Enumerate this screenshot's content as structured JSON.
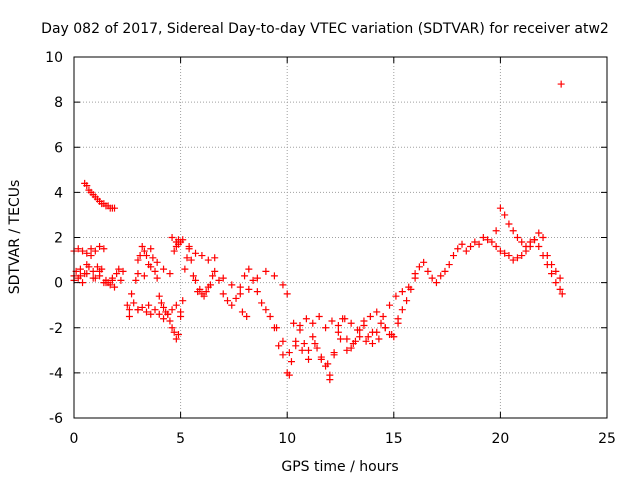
{
  "chart_data": {
    "type": "scatter",
    "title": "Day 082 of 2017, Sidereal Day-to-day VTEC variation (SDTVAR) for receiver atw2",
    "xlabel": "GPS time / hours",
    "ylabel": "SDTVAR / TECUs",
    "xlim": [
      0,
      25
    ],
    "ylim": [
      -6,
      10
    ],
    "x_ticks": [
      0,
      5,
      10,
      15,
      20,
      25
    ],
    "y_ticks": [
      -6,
      -4,
      -2,
      0,
      2,
      4,
      6,
      8,
      10
    ],
    "x_tick_labels": [
      "0",
      "5",
      "10",
      "15",
      "20",
      "25"
    ],
    "y_tick_labels": [
      "-6",
      "-4",
      "-2",
      "0",
      "2",
      "4",
      "6",
      "8",
      "10"
    ],
    "grid": true,
    "marker": "plus",
    "color": "#ff0000",
    "series": [
      {
        "name": "SDTVAR",
        "x": [
          0.0,
          0.1,
          0.2,
          0.3,
          0.4,
          0.5,
          0.6,
          0.7,
          0.8,
          0.9,
          1.0,
          1.1,
          1.2,
          1.3,
          1.4,
          1.5,
          1.6,
          1.7,
          1.8,
          1.9,
          2.0,
          2.1,
          2.2,
          2.3,
          2.5,
          2.7,
          2.9,
          3.0,
          3.1,
          3.2,
          3.3,
          3.4,
          3.5,
          3.6,
          3.7,
          3.8,
          3.9,
          4.0,
          4.1,
          4.2,
          4.3,
          4.4,
          4.5,
          4.6,
          4.7,
          4.8,
          4.9,
          5.0,
          5.1,
          5.2,
          5.3,
          5.4,
          5.5,
          5.6,
          5.7,
          5.8,
          5.9,
          6.0,
          6.1,
          6.2,
          6.3,
          6.4,
          6.5,
          6.6,
          6.8,
          7.0,
          7.2,
          7.4,
          7.6,
          7.8,
          8.0,
          8.2,
          8.4,
          8.6,
          8.8,
          9.0,
          9.2,
          9.4,
          9.6,
          9.8,
          10.0,
          10.2,
          10.4,
          10.6,
          10.8,
          11.0,
          11.2,
          11.4,
          11.6,
          11.8,
          12.0,
          12.2,
          12.4,
          12.6,
          12.8,
          13.0,
          13.2,
          13.4,
          13.6,
          13.8,
          14.0,
          14.2,
          14.4,
          14.6,
          14.8,
          15.0,
          15.2,
          15.4,
          15.6,
          15.8,
          16.0,
          16.2,
          16.4,
          16.6,
          16.8,
          17.0,
          17.2,
          17.4,
          17.6,
          17.8,
          18.0,
          18.2,
          18.4,
          18.6,
          18.8,
          19.0,
          19.2,
          19.4,
          19.6,
          19.8,
          20.0,
          20.2,
          20.4,
          20.6,
          20.8,
          21.0,
          21.2,
          21.4,
          21.6,
          21.8,
          22.0,
          22.2,
          22.4,
          22.6,
          22.8,
          0.0,
          0.2,
          0.4,
          0.6,
          0.8,
          1.0,
          1.2,
          1.4,
          0.0,
          0.3,
          0.6,
          0.9,
          1.2,
          1.5,
          1.8,
          0.5,
          0.6,
          0.7,
          0.8,
          0.9,
          1.0,
          1.1,
          1.2,
          1.3,
          1.4,
          1.5,
          1.6,
          1.7,
          1.8,
          1.9,
          2.6,
          2.8,
          3.0,
          3.2,
          3.4,
          3.6,
          3.8,
          4.0,
          4.2,
          4.4,
          4.6,
          4.8,
          5.0,
          3.0,
          3.3,
          3.6,
          3.9,
          4.2,
          4.5,
          4.8,
          5.1,
          5.4,
          5.7,
          6.0,
          6.3,
          6.6,
          7.0,
          7.4,
          7.8,
          8.2,
          8.6,
          9.0,
          9.4,
          9.8,
          10.0,
          10.3,
          10.6,
          10.9,
          11.2,
          11.5,
          11.8,
          12.1,
          12.4,
          12.7,
          13.0,
          13.3,
          13.6,
          13.9,
          14.2,
          14.5,
          14.8,
          15.1,
          15.4,
          15.7,
          16.0,
          9.5,
          9.8,
          10.1,
          10.4,
          10.7,
          11.0,
          11.3,
          11.6,
          11.9,
          12.2,
          12.5,
          12.8,
          13.1,
          13.4,
          13.7,
          14.0,
          14.3,
          14.6,
          14.9,
          15.2,
          19.8,
          20.0,
          20.2,
          20.4,
          20.6,
          20.8,
          21.0,
          21.2,
          21.4,
          21.6,
          21.8,
          22.0,
          22.2,
          22.4,
          22.6,
          22.8,
          22.9,
          4.7,
          4.8,
          4.9,
          5.0,
          4.6,
          4.9,
          2.6,
          3.0,
          3.5,
          7.9,
          8.1,
          12.0,
          10.1,
          22.85
        ],
        "y": [
          0.3,
          0.5,
          0.2,
          0.6,
          0.0,
          0.4,
          0.8,
          0.7,
          1.2,
          0.5,
          0.2,
          0.7,
          0.3,
          0.6,
          0.0,
          0.1,
          0.0,
          -0.1,
          0.2,
          -0.2,
          0.4,
          0.6,
          0.1,
          0.5,
          -1.0,
          -0.5,
          0.1,
          1.0,
          1.2,
          1.6,
          1.4,
          1.2,
          0.8,
          1.5,
          1.1,
          0.5,
          0.2,
          -0.6,
          -0.9,
          -1.1,
          -1.3,
          -1.4,
          -1.7,
          -2.0,
          -2.2,
          -2.5,
          -2.3,
          -1.5,
          -0.8,
          0.6,
          1.1,
          1.5,
          1.0,
          0.3,
          0.1,
          -0.4,
          -0.3,
          -0.5,
          -0.6,
          -0.4,
          -0.2,
          -0.1,
          0.3,
          0.5,
          0.1,
          -0.5,
          -0.8,
          -1.0,
          -0.7,
          -0.2,
          0.3,
          0.6,
          0.1,
          -0.4,
          -0.9,
          -1.2,
          -1.5,
          -2.0,
          -2.8,
          -3.2,
          -4.0,
          -3.5,
          -2.6,
          -2.1,
          -2.7,
          -3.0,
          -2.4,
          -2.9,
          -3.4,
          -3.7,
          -4.1,
          -3.1,
          -2.2,
          -1.6,
          -2.5,
          -2.9,
          -2.6,
          -2.1,
          -1.9,
          -2.4,
          -2.7,
          -2.2,
          -1.8,
          -2.0,
          -2.3,
          -2.4,
          -1.8,
          -1.2,
          -0.8,
          -0.3,
          0.4,
          0.7,
          0.9,
          0.5,
          0.2,
          0.0,
          0.3,
          0.5,
          0.8,
          1.2,
          1.5,
          1.7,
          1.4,
          1.6,
          1.8,
          1.7,
          2.0,
          1.9,
          1.8,
          1.6,
          1.4,
          1.3,
          1.2,
          1.0,
          1.1,
          1.2,
          1.4,
          1.6,
          1.9,
          2.2,
          2.0,
          1.2,
          0.8,
          0.5,
          0.2,
          1.4,
          1.5,
          1.4,
          1.3,
          1.5,
          1.4,
          1.6,
          1.5,
          0.1,
          0.3,
          0.4,
          0.2,
          0.5,
          0.0,
          0.1,
          4.4,
          4.3,
          4.1,
          4.0,
          3.9,
          3.8,
          3.7,
          3.6,
          3.5,
          3.5,
          3.4,
          3.4,
          3.3,
          3.3,
          3.3,
          -1.2,
          -0.9,
          -1.2,
          -1.1,
          -1.3,
          -1.4,
          -1.2,
          -1.4,
          -1.6,
          -1.4,
          -1.2,
          -1.0,
          -1.3,
          0.4,
          0.3,
          0.7,
          0.9,
          0.6,
          0.4,
          1.8,
          1.9,
          1.6,
          1.3,
          1.2,
          1.0,
          1.1,
          0.2,
          -0.1,
          -0.5,
          -0.3,
          0.2,
          0.5,
          0.3,
          -0.1,
          -0.5,
          -1.8,
          -1.9,
          -1.6,
          -1.8,
          -1.5,
          -2.0,
          -1.7,
          -1.9,
          -1.6,
          -1.8,
          -2.1,
          -1.7,
          -1.5,
          -1.3,
          -1.5,
          -1.0,
          -0.6,
          -0.4,
          -0.2,
          0.2,
          -2.0,
          -2.6,
          -3.1,
          -2.8,
          -3.0,
          -3.4,
          -2.7,
          -3.3,
          -3.6,
          -3.2,
          -2.5,
          -3.0,
          -2.7,
          -2.4,
          -2.6,
          -2.2,
          -2.5,
          -2.0,
          -2.3,
          -1.6,
          2.3,
          3.3,
          3.0,
          2.6,
          2.3,
          2.0,
          1.8,
          1.6,
          1.8,
          1.9,
          1.6,
          1.2,
          0.8,
          0.4,
          0.0,
          -0.3,
          -0.5,
          1.4,
          1.6,
          1.9,
          1.8,
          2.0,
          1.7,
          -1.5,
          -1.2,
          -1.0,
          -1.3,
          -1.5,
          -4.3,
          -4.1,
          8.8
        ]
      }
    ]
  }
}
